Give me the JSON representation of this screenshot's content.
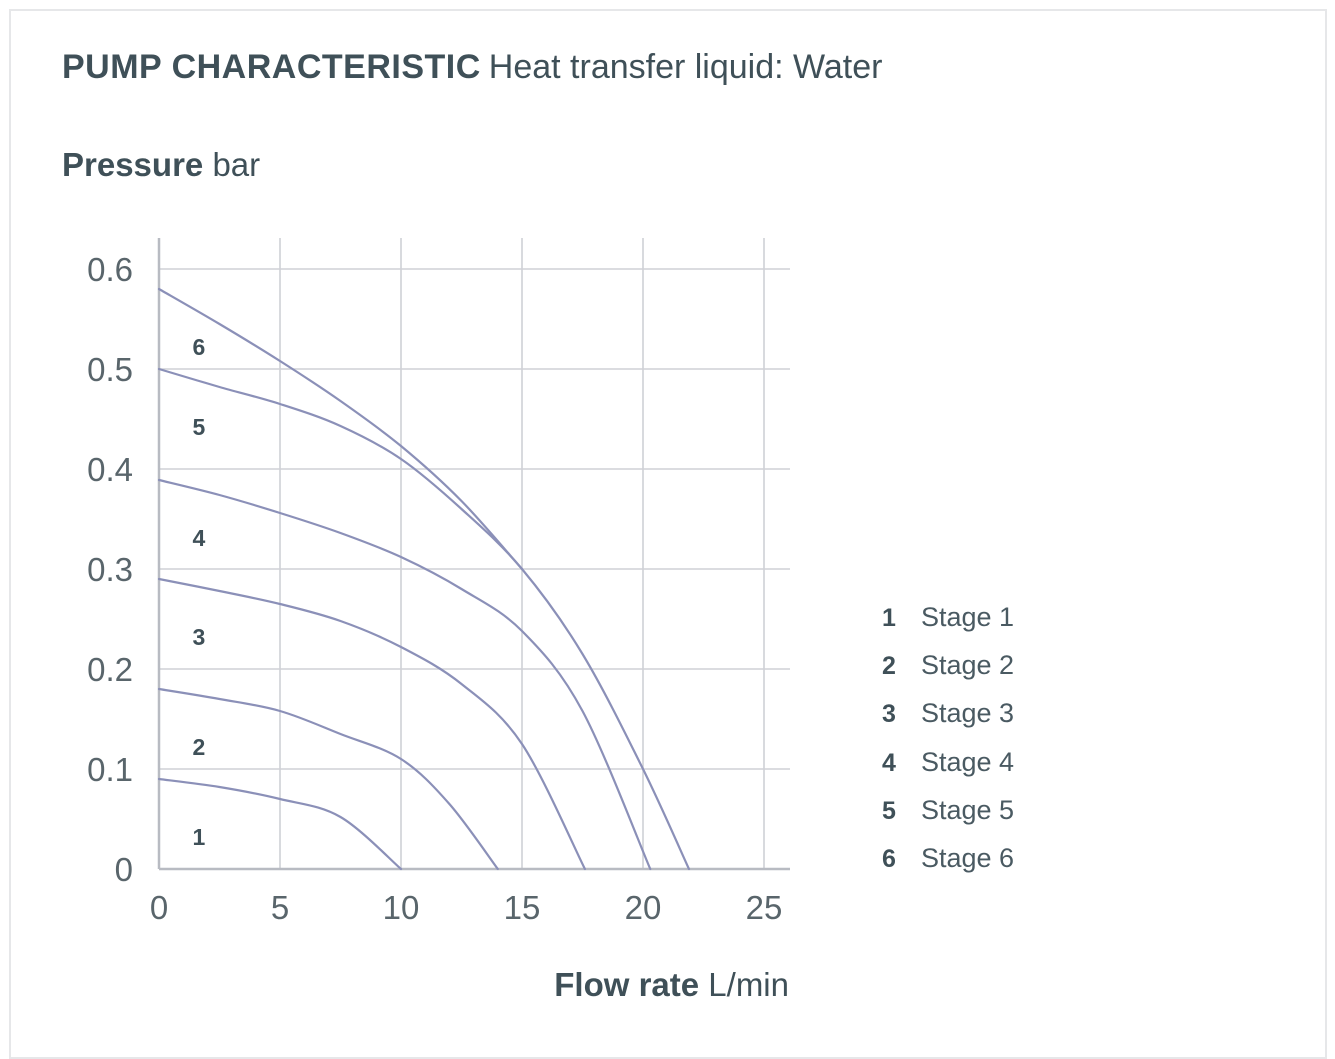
{
  "header": {
    "title_bold": "PUMP CHARACTERISTIC",
    "title_light": "Heat transfer liquid: Water"
  },
  "axes": {
    "y_name": "Pressure",
    "y_unit": "bar",
    "x_name": "Flow rate",
    "x_unit": "L/min"
  },
  "colors": {
    "grid": "#cfd1d6",
    "axis": "#b8bbc2",
    "curve": "#8b90b8",
    "text": "#3f5058",
    "tick": "#59656b"
  },
  "chart_data": {
    "type": "line",
    "xlabel": "Flow rate L/min",
    "ylabel": "Pressure bar",
    "xlim": [
      0,
      26
    ],
    "ylim": [
      0,
      0.62
    ],
    "xticks": [
      "0",
      "5",
      "10",
      "15",
      "20",
      "25"
    ],
    "yticks": [
      "0",
      "0.1",
      "0.2",
      "0.3",
      "0.4",
      "0.5",
      "0.6"
    ],
    "grid": true,
    "legend": "right",
    "series": [
      {
        "name": "Stage 1",
        "label": "1",
        "x": [
          0,
          2.5,
          5,
          7.5,
          10
        ],
        "y": [
          0.09,
          0.082,
          0.07,
          0.052,
          0
        ]
      },
      {
        "name": "Stage 2",
        "label": "2",
        "x": [
          0,
          2.5,
          5,
          7.5,
          10,
          12,
          14
        ],
        "y": [
          0.18,
          0.17,
          0.158,
          0.135,
          0.11,
          0.065,
          0
        ]
      },
      {
        "name": "Stage 3",
        "label": "3",
        "x": [
          0,
          2.5,
          5,
          7.5,
          10,
          12.5,
          15,
          17.6
        ],
        "y": [
          0.29,
          0.278,
          0.265,
          0.248,
          0.222,
          0.185,
          0.125,
          0
        ]
      },
      {
        "name": "Stage 4",
        "label": "4",
        "x": [
          0,
          2.5,
          5,
          7.5,
          10,
          12.5,
          15,
          17.5,
          20.3
        ],
        "y": [
          0.389,
          0.374,
          0.356,
          0.336,
          0.312,
          0.28,
          0.238,
          0.158,
          0
        ]
      },
      {
        "name": "Stage 5",
        "label": "5",
        "x": [
          0,
          2.5,
          5,
          7.5,
          10,
          12.5,
          15,
          17.5,
          20,
          21.9
        ],
        "y": [
          0.5,
          0.482,
          0.465,
          0.443,
          0.41,
          0.36,
          0.3,
          0.215,
          0.1,
          0
        ]
      },
      {
        "name": "Stage 6",
        "label": "6",
        "x": [
          0,
          2.5,
          5,
          7.5,
          10,
          12.5,
          15
        ],
        "y": [
          0.58,
          0.545,
          0.508,
          0.468,
          0.423,
          0.368,
          0.3
        ]
      }
    ]
  },
  "legend": [
    {
      "num": "1",
      "label": "Stage 1"
    },
    {
      "num": "2",
      "label": "Stage 2"
    },
    {
      "num": "3",
      "label": "Stage 3"
    },
    {
      "num": "4",
      "label": "Stage 4"
    },
    {
      "num": "5",
      "label": "Stage 5"
    },
    {
      "num": "6",
      "label": "Stage 6"
    }
  ]
}
